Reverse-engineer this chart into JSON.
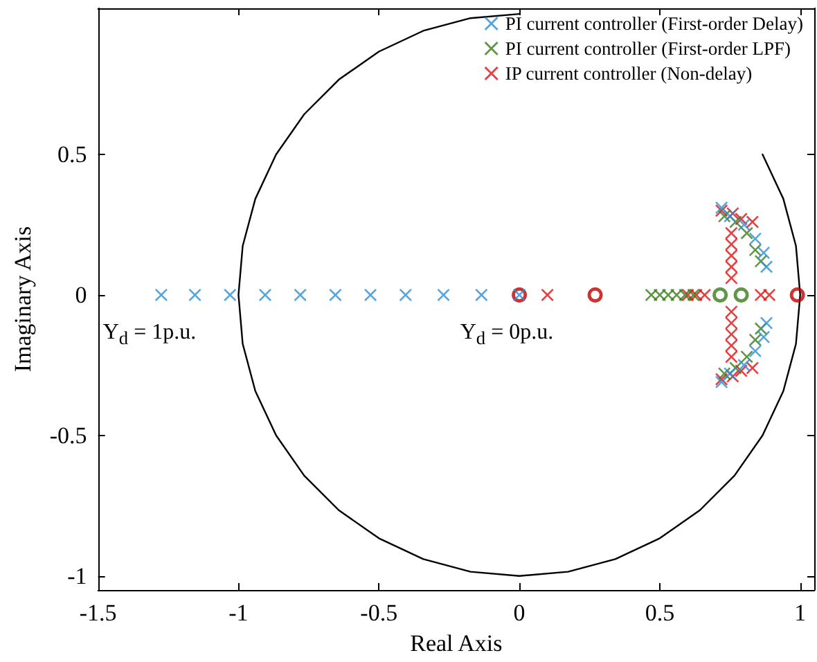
{
  "chart_data": {
    "type": "scatter",
    "xlabel": "Real Axis",
    "ylabel": "Imaginary Axis",
    "xlim": [
      -1.5,
      1.05
    ],
    "ylim": [
      -1.05,
      1.02
    ],
    "xticks": [
      -1.5,
      -1,
      -0.5,
      0,
      0.5,
      1
    ],
    "yticks": [
      -1,
      -0.5,
      0,
      0.5
    ],
    "legend": "top right",
    "marker": "cross",
    "grid": false,
    "annotations": [
      "Y$_{d}$ = 1p.u.",
      "Y$_{d}$ = 0p.u."
    ],
    "series": [
      {
        "name": "PI current controller (First-order Delay)",
        "color": "#2a8fd6",
        "x": [
          -1.275,
          -1.155,
          -1.03,
          -0.905,
          -0.78,
          -0.655,
          -0.53,
          -0.405,
          -0.27,
          -0.135,
          0,
          0.72,
          0.75,
          0.8,
          0.84,
          0.87,
          0.88,
          0.72,
          0.75,
          0.8,
          0.84,
          0.87,
          0.88
        ],
        "values": [
          0,
          0,
          0,
          0,
          0,
          0,
          0,
          0,
          0,
          0,
          0,
          0.31,
          0.28,
          0.25,
          0.2,
          0.15,
          0.1,
          -0.31,
          -0.28,
          -0.25,
          -0.2,
          -0.15,
          -0.1
        ]
      },
      {
        "name": "PI current controller (First-order LPF)",
        "color": "#3a7a1a",
        "x": [
          0.47,
          0.5,
          0.53,
          0.56,
          0.59,
          0.62,
          0.73,
          0.77,
          0.81,
          0.84,
          0.86,
          0.73,
          0.77,
          0.81,
          0.84,
          0.86
        ],
        "values": [
          0,
          0,
          0,
          0,
          0,
          0,
          0.28,
          0.26,
          0.22,
          0.16,
          0.12,
          -0.28,
          -0.26,
          -0.22,
          -0.16,
          -0.12
        ]
      },
      {
        "name": "IP current controller (Non-delay)",
        "color": "#e01010",
        "x": [
          0.1,
          0.6,
          0.63,
          0.66,
          0.86,
          0.89,
          0.755,
          0.755,
          0.755,
          0.755,
          0.755,
          0.755,
          0.755,
          0.755,
          0.755,
          0.755,
          0.72,
          0.76,
          0.79,
          0.83,
          0.72,
          0.76,
          0.79,
          0.83
        ],
        "values": [
          0,
          0,
          0,
          0,
          0,
          0,
          0.06,
          0.1,
          0.14,
          0.18,
          0.22,
          -0.06,
          -0.1,
          -0.14,
          -0.18,
          -0.22,
          0.3,
          0.29,
          0.27,
          0.26,
          -0.3,
          -0.29,
          -0.27,
          -0.26
        ]
      },
      {
        "color": "#c00000",
        "marker": "circle",
        "x": [
          0,
          0.27,
          0.99
        ],
        "values": [
          0,
          0,
          0
        ]
      },
      {
        "color": "#3a7a1a",
        "marker": "circle",
        "x": [
          0.715,
          0.79
        ],
        "values": [
          0,
          0
        ]
      },
      {
        "type": "line",
        "color": "#000000",
        "marker": "none",
        "x": [
          0.866,
          0.94,
          0.985,
          1,
          0.985,
          0.94,
          0.866,
          0.766,
          0.643,
          0.5,
          0.342,
          0.174,
          0,
          -0.174,
          -0.342,
          -0.5,
          -0.643,
          -0.766,
          -0.866,
          -0.94,
          -0.985,
          -1,
          -0.985,
          -0.94,
          -0.866,
          -0.766,
          -0.643,
          -0.5,
          -0.342,
          -0.174,
          0
        ],
        "values": [
          0.5,
          0.342,
          0.174,
          0,
          -0.174,
          -0.342,
          -0.5,
          -0.643,
          -0.766,
          -0.866,
          -0.94,
          -0.985,
          -1,
          -0.985,
          -0.94,
          -0.866,
          -0.766,
          -0.643,
          -0.5,
          -0.342,
          -0.174,
          0,
          0.174,
          0.342,
          0.5,
          0.643,
          0.766,
          0.866,
          0.94,
          0.985,
          1
        ]
      }
    ]
  }
}
